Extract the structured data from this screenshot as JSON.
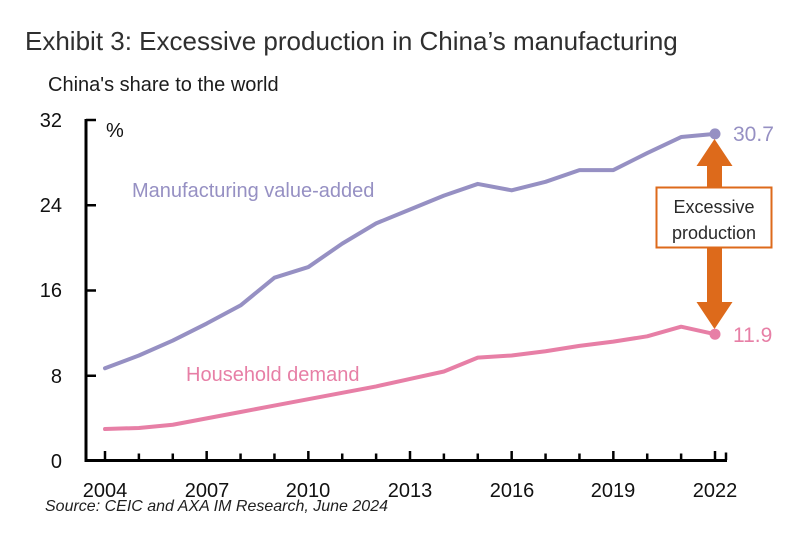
{
  "title": "Exhibit 3: Excessive production in China’s manufacturing",
  "subtitle": "China's share to the world",
  "source": "Source: CEIC and AXA IM Research, June 2024",
  "annotation": {
    "lines": [
      "Excessive",
      "production"
    ]
  },
  "colors": {
    "arrow": "#dd6a1b",
    "axis": "#000000"
  },
  "chart_data": {
    "type": "line",
    "title": "China's share to the world",
    "ylabel": "%",
    "xlabel": "",
    "ylim": [
      0,
      32
    ],
    "grid": false,
    "legend": "inline-labels",
    "x": [
      2004,
      2005,
      2006,
      2007,
      2008,
      2009,
      2010,
      2011,
      2012,
      2013,
      2014,
      2015,
      2016,
      2017,
      2018,
      2019,
      2020,
      2021,
      2022
    ],
    "x_tick_labels": [
      "2004",
      "2007",
      "2010",
      "2013",
      "2016",
      "2019",
      "2022"
    ],
    "y_ticks": [
      0,
      8,
      16,
      24,
      32
    ],
    "series": [
      {
        "name": "Manufacturing value-added",
        "color": "#9690c3",
        "values": [
          8.7,
          9.9,
          11.3,
          12.9,
          14.6,
          17.2,
          18.2,
          20.4,
          22.3,
          23.6,
          24.9,
          26.0,
          25.4,
          26.2,
          27.3,
          27.3,
          28.9,
          30.4,
          30.7
        ]
      },
      {
        "name": "Household demand",
        "color": "#e77fa6",
        "values": [
          3.0,
          3.1,
          3.4,
          4.0,
          4.6,
          5.2,
          5.8,
          6.4,
          7.0,
          7.7,
          8.4,
          9.7,
          9.9,
          10.3,
          10.8,
          11.2,
          11.7,
          12.6,
          11.9
        ]
      }
    ],
    "end_labels": [
      "30.7",
      "11.9"
    ],
    "annotation": "Excessive production"
  }
}
